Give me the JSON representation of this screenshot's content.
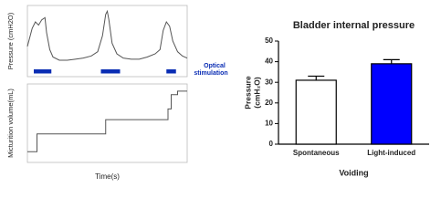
{
  "chart_data": [
    {
      "type": "line",
      "y_label": "Pressure (cmH2O)",
      "color": "#555555",
      "x": [
        0,
        3,
        5,
        7,
        9,
        11,
        12,
        14,
        16,
        20,
        25,
        30,
        35,
        40,
        44,
        47,
        49,
        50,
        51,
        53,
        56,
        60,
        65,
        70,
        75,
        80,
        83,
        85,
        87,
        89,
        91,
        94,
        97,
        100
      ],
      "values": [
        25,
        42,
        48,
        45,
        50,
        52,
        38,
        22,
        15,
        12,
        12,
        13,
        14,
        16,
        20,
        35,
        55,
        58,
        50,
        28,
        18,
        14,
        13,
        13,
        15,
        18,
        22,
        40,
        48,
        44,
        30,
        20,
        16,
        14
      ],
      "xlim": [
        0,
        100
      ],
      "ylim": [
        0,
        60
      ],
      "stimulation_periods": [
        [
          4,
          15
        ],
        [
          46,
          58
        ],
        [
          87,
          93
        ]
      ],
      "stimulation_color": "#0a2db4",
      "annotation": [
        "Optical",
        "stimulation"
      ]
    },
    {
      "type": "line",
      "y_label": "Micturition volume(mL)",
      "x_label": "Time(s)",
      "color": "#555555",
      "x": [
        0,
        6,
        6,
        49,
        49,
        88,
        88,
        90,
        90,
        94,
        94,
        100
      ],
      "values": [
        1,
        1,
        3.5,
        3.5,
        5.5,
        5.5,
        7,
        7,
        9,
        9,
        9.5,
        9.5
      ],
      "xlim": [
        0,
        100
      ],
      "ylim": [
        0,
        10
      ]
    },
    {
      "type": "bar",
      "title": "Bladder internal pressure",
      "y_label": [
        "Pressure",
        "(cmH₂O)"
      ],
      "x_label": "Voiding",
      "categories": [
        "Spontaneous",
        "Light-induced"
      ],
      "values": [
        31,
        39
      ],
      "errors": [
        2,
        2
      ],
      "colors": [
        "#ffffff",
        "#0000ff"
      ],
      "ylim": [
        0,
        50
      ],
      "yticks": [
        0,
        10,
        20,
        30,
        40,
        50
      ]
    }
  ]
}
